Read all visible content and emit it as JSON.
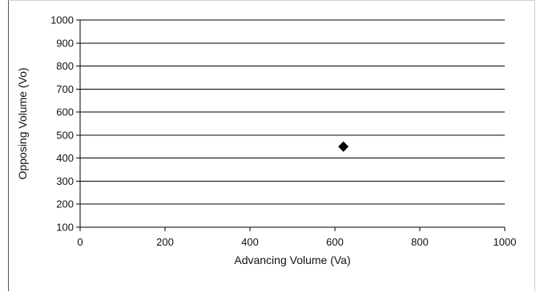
{
  "chart_data": {
    "type": "scatter",
    "title": "",
    "xlabel": "Advancing Volume (Va)",
    "ylabel": "Opposing Volume (Vo)",
    "xlim": [
      0,
      1000
    ],
    "ylim": [
      100,
      1000
    ],
    "x_ticks": [
      0,
      200,
      400,
      600,
      800,
      1000
    ],
    "y_ticks": [
      100,
      200,
      300,
      400,
      500,
      600,
      700,
      800,
      900,
      1000
    ],
    "x_tick_labels": [
      "0",
      "200",
      "400",
      "600",
      "800",
      "1000"
    ],
    "y_tick_labels": [
      "100",
      "200",
      "300",
      "400",
      "500",
      "600",
      "700",
      "800",
      "900",
      "1000"
    ],
    "grid": "horizontal",
    "legend": "none",
    "marker": "diamond",
    "marker_color": "#000000",
    "series": [
      {
        "points": [
          {
            "x": 620,
            "y": 450
          }
        ]
      }
    ]
  }
}
